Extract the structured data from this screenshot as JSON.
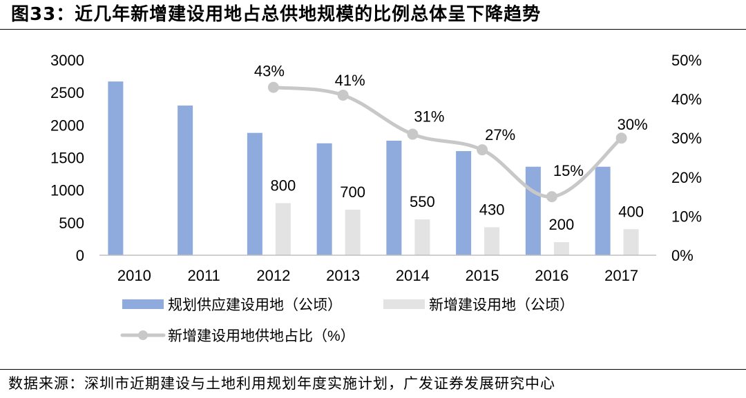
{
  "title": "图33：近几年新增建设用地占总供地规模的比例总体呈下降趋势",
  "source": "数据来源：深圳市近期建设与土地利用规划年度实施计划，广发证券发展研究中心",
  "chart_data": {
    "type": "bar",
    "categories": [
      "2010",
      "2011",
      "2012",
      "2013",
      "2014",
      "2015",
      "2016",
      "2017"
    ],
    "series": [
      {
        "name": "规划供应建设用地（公顷）",
        "type": "bar",
        "axis": "left",
        "color": "#8faadc",
        "values": [
          2670,
          2300,
          1880,
          1720,
          1760,
          1600,
          1360,
          1360
        ],
        "labels": [
          "",
          "",
          "",
          "",
          "",
          "",
          "",
          ""
        ]
      },
      {
        "name": "新增建设用地（公顷）",
        "type": "bar",
        "axis": "left",
        "color": "#e3e3e3",
        "values": [
          null,
          null,
          800,
          700,
          550,
          430,
          200,
          400
        ],
        "labels": [
          "",
          "",
          "800",
          "700",
          "550",
          "430",
          "200",
          "400"
        ]
      },
      {
        "name": "新增建设用地供地占比（%）",
        "type": "line",
        "axis": "right",
        "color": "#c8c8c8",
        "values": [
          null,
          null,
          43,
          41,
          31,
          27,
          15,
          30
        ],
        "labels": [
          "",
          "",
          "43%",
          "41%",
          "31%",
          "27%",
          "15%",
          "30%"
        ]
      }
    ],
    "y_left": {
      "min": 0,
      "max": 3000,
      "ticks": [
        "0",
        "500",
        "1000",
        "1500",
        "2000",
        "2500",
        "3000"
      ]
    },
    "y_right": {
      "min": 0,
      "max": 50,
      "ticks": [
        "0%",
        "10%",
        "20%",
        "30%",
        "40%",
        "50%"
      ]
    },
    "grid": false,
    "legend_position": "bottom"
  }
}
